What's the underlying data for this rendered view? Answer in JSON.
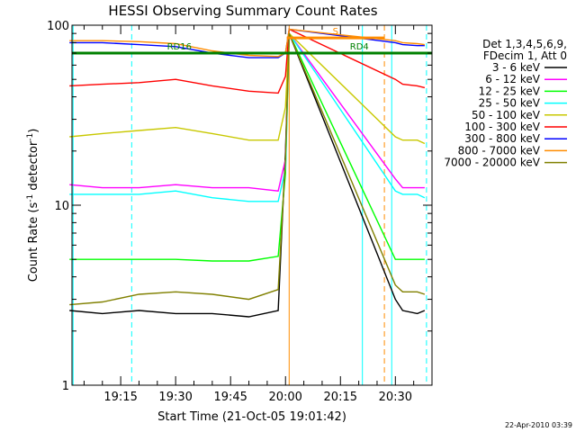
{
  "chart_data": {
    "type": "line",
    "title": "HESSI Observing Summary Count Rates",
    "xlabel": "Start Time (21-Oct-05 19:01:42)",
    "ylabel_main": "Count Rate (s",
    "ylabel_sup": "-1",
    "ylabel_end": " detector",
    "ylabel_close": ")",
    "yscale": "log",
    "ylim": [
      1,
      100
    ],
    "y_tick_labels": [
      "1",
      "10",
      "100"
    ],
    "xlim": [
      "19:01:42",
      "20:40:00"
    ],
    "x_tick_labels": [
      "19:15",
      "19:30",
      "19:45",
      "20:00",
      "20:15",
      "20:30"
    ],
    "legend_header": [
      "Det 1,3,4,5,6,9,",
      "FDecim 1, Att 0"
    ],
    "footer_date": "22-Apr-2010 03:39",
    "series": [
      {
        "name": "3 - 6 keV",
        "color": "#000000",
        "x": [
          "19:01",
          "19:10",
          "19:20",
          "19:30",
          "19:40",
          "19:50",
          "19:58",
          "20:00",
          "20:01",
          "20:30",
          "20:32",
          "20:36",
          "20:38"
        ],
        "y": [
          2.6,
          2.5,
          2.6,
          2.5,
          2.5,
          2.4,
          2.6,
          20,
          90,
          3.0,
          2.6,
          2.5,
          2.6
        ]
      },
      {
        "name": "6 - 12 keV",
        "color": "#ff00ff",
        "x": [
          "19:01",
          "19:10",
          "19:20",
          "19:30",
          "19:40",
          "19:50",
          "19:58",
          "20:00",
          "20:01",
          "20:30",
          "20:32",
          "20:36",
          "20:38"
        ],
        "y": [
          13,
          12.5,
          12.5,
          13,
          12.5,
          12.5,
          12,
          18,
          90,
          14,
          12.5,
          12.5,
          12.5
        ]
      },
      {
        "name": "12 - 25 keV",
        "color": "#00ff00",
        "x": [
          "19:01",
          "19:10",
          "19:20",
          "19:30",
          "19:40",
          "19:50",
          "19:58",
          "20:00",
          "20:01",
          "20:30",
          "20:32",
          "20:36",
          "20:38"
        ],
        "y": [
          5.0,
          5.0,
          5.0,
          5.0,
          4.9,
          4.9,
          5.2,
          15,
          90,
          5.0,
          5.0,
          5.0,
          5.0
        ]
      },
      {
        "name": "25 - 50 keV",
        "color": "#00ffff",
        "x": [
          "19:01",
          "19:10",
          "19:20",
          "19:30",
          "19:40",
          "19:50",
          "19:58",
          "20:00",
          "20:01",
          "20:30",
          "20:32",
          "20:36",
          "20:38"
        ],
        "y": [
          11.5,
          11.5,
          11.5,
          12,
          11,
          10.5,
          10.5,
          16,
          90,
          12,
          11.5,
          11.5,
          11
        ]
      },
      {
        "name": "50 - 100 keV",
        "color": "#c8c800",
        "x": [
          "19:01",
          "19:10",
          "19:20",
          "19:30",
          "19:40",
          "19:50",
          "19:58",
          "20:00",
          "20:01",
          "20:30",
          "20:32",
          "20:36",
          "20:38"
        ],
        "y": [
          24,
          25,
          26,
          27,
          25,
          23,
          23,
          35,
          90,
          24,
          23,
          23,
          22
        ]
      },
      {
        "name": "100 - 300 keV",
        "color": "#ff0000",
        "x": [
          "19:01",
          "19:10",
          "19:20",
          "19:30",
          "19:40",
          "19:50",
          "19:58",
          "20:00",
          "20:01",
          "20:30",
          "20:32",
          "20:36",
          "20:38"
        ],
        "y": [
          46,
          47,
          48,
          50,
          46,
          43,
          42,
          52,
          95,
          50,
          47,
          46,
          45
        ]
      },
      {
        "name": "300 - 800 keV",
        "color": "#0000ff",
        "x": [
          "19:01",
          "19:10",
          "19:20",
          "19:30",
          "19:40",
          "19:50",
          "19:58",
          "20:00",
          "20:01",
          "20:30",
          "20:32",
          "20:36",
          "20:38"
        ],
        "y": [
          80,
          80,
          78,
          76,
          70,
          66,
          66,
          70,
          95,
          80,
          78,
          77,
          77
        ]
      },
      {
        "name": "800 - 7000 keV",
        "color": "#ff8c00",
        "x": [
          "19:01",
          "19:10",
          "19:20",
          "19:30",
          "19:40",
          "19:50",
          "19:58",
          "20:00",
          "20:01",
          "20:30",
          "20:32",
          "20:36",
          "20:38"
        ],
        "y": [
          82,
          82,
          81,
          79,
          72,
          68,
          67,
          70,
          95,
          82,
          80,
          79,
          78
        ]
      },
      {
        "name": "7000 - 20000 keV",
        "color": "#808000",
        "x": [
          "19:01",
          "19:10",
          "19:20",
          "19:30",
          "19:40",
          "19:50",
          "19:58",
          "20:00",
          "20:01",
          "20:30",
          "20:32",
          "20:36",
          "20:38"
        ],
        "y": [
          2.8,
          2.9,
          3.2,
          3.3,
          3.2,
          3.0,
          3.4,
          18,
          90,
          3.6,
          3.3,
          3.3,
          3.2
        ]
      }
    ],
    "annotations": [
      {
        "label": "S",
        "color": "#ff8c00",
        "x_start": "20:00:20",
        "x_end": "20:27:00",
        "y": 85
      },
      {
        "label": "RD4",
        "color": "#008000",
        "x_start": "20:00:20",
        "x_end": "20:40:00",
        "y": 70
      },
      {
        "label": "RD16",
        "color": "#008000",
        "x_start": "19:01:42",
        "x_end": "20:00:20",
        "y": 70
      }
    ],
    "vertical_lines": [
      {
        "x": "19:02:00",
        "color": "#00ffff",
        "style": "solid"
      },
      {
        "x": "19:18:00",
        "color": "#00ffff",
        "style": "dashed"
      },
      {
        "x": "20:01:00",
        "color": "#ff8c00",
        "style": "solid"
      },
      {
        "x": "20:21:00",
        "color": "#00ffff",
        "style": "solid"
      },
      {
        "x": "20:27:00",
        "color": "#ff8c00",
        "style": "dashed"
      },
      {
        "x": "20:29:00",
        "color": "#00ffff",
        "style": "solid"
      },
      {
        "x": "20:38:30",
        "color": "#00ffff",
        "style": "dashed"
      }
    ]
  }
}
